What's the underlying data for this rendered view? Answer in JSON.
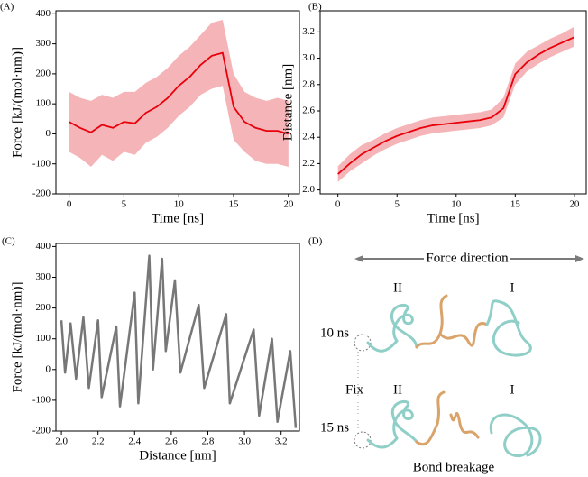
{
  "chart_data": [
    {
      "type": "line",
      "label": "(A)",
      "xlabel": "Time [ns]",
      "ylabel": "Force [kJ/(mol·nm)]",
      "x": [
        0,
        1,
        2,
        3,
        4,
        5,
        6,
        7,
        8,
        9,
        10,
        11,
        12,
        13,
        14,
        15,
        16,
        17,
        18,
        19,
        20
      ],
      "values": [
        40,
        20,
        5,
        30,
        20,
        40,
        35,
        70,
        90,
        120,
        160,
        190,
        230,
        260,
        270,
        90,
        40,
        20,
        10,
        10,
        0
      ],
      "lower": [
        -60,
        -80,
        -110,
        -70,
        -90,
        -60,
        -70,
        -30,
        -10,
        20,
        60,
        90,
        130,
        150,
        160,
        -20,
        -60,
        -90,
        -100,
        -100,
        -110
      ],
      "upper": [
        140,
        120,
        110,
        130,
        120,
        140,
        140,
        170,
        190,
        220,
        260,
        290,
        330,
        370,
        380,
        200,
        140,
        120,
        110,
        120,
        110
      ],
      "color": "#e8000b",
      "band_color": "#f5b5b8",
      "xlim": [
        -1.2,
        21
      ],
      "ylim": [
        -200,
        410
      ],
      "xticks": [
        0,
        5,
        10,
        15,
        20
      ],
      "yticks": [
        -200,
        -100,
        0,
        100,
        200,
        300,
        400
      ]
    },
    {
      "type": "line",
      "label": "(B)",
      "xlabel": "Time [ns]",
      "ylabel": "Distance [nm]",
      "x": [
        0,
        1,
        2,
        3,
        4,
        5,
        6,
        7,
        8,
        9,
        10,
        11,
        12,
        13,
        14,
        15,
        16,
        17,
        18,
        19,
        20
      ],
      "values": [
        2.12,
        2.2,
        2.27,
        2.32,
        2.37,
        2.41,
        2.44,
        2.47,
        2.49,
        2.5,
        2.51,
        2.52,
        2.53,
        2.55,
        2.62,
        2.88,
        2.97,
        3.03,
        3.08,
        3.12,
        3.16
      ],
      "lower": [
        2.06,
        2.14,
        2.2,
        2.26,
        2.31,
        2.35,
        2.38,
        2.41,
        2.43,
        2.44,
        2.45,
        2.46,
        2.47,
        2.49,
        2.55,
        2.8,
        2.9,
        2.96,
        3.01,
        3.05,
        3.09
      ],
      "upper": [
        2.18,
        2.27,
        2.34,
        2.38,
        2.43,
        2.47,
        2.5,
        2.53,
        2.55,
        2.56,
        2.57,
        2.58,
        2.59,
        2.61,
        2.7,
        2.96,
        3.05,
        3.1,
        3.15,
        3.19,
        3.24
      ],
      "color": "#e8000b",
      "band_color": "#f5b5b8",
      "xlim": [
        -1.5,
        21
      ],
      "ylim": [
        1.97,
        3.36
      ],
      "xticks": [
        0,
        5,
        10,
        15,
        20
      ],
      "yticks": [
        {
          "value": 2,
          "label": "2.0"
        },
        2.2,
        2.4,
        2.6,
        2.8,
        {
          "value": 3,
          "label": "3.0"
        },
        3.2
      ]
    },
    {
      "type": "line",
      "label": "(C)",
      "xlabel": "Distance [nm]",
      "ylabel": "Force [kJ/(mol·nm)]",
      "x": [
        2.0,
        2.02,
        2.05,
        2.08,
        2.12,
        2.15,
        2.2,
        2.22,
        2.3,
        2.32,
        2.4,
        2.42,
        2.48,
        2.5,
        2.55,
        2.57,
        2.62,
        2.65,
        2.75,
        2.78,
        2.9,
        2.92,
        3.05,
        3.08,
        3.15,
        3.18,
        3.25,
        3.28
      ],
      "values": [
        160,
        -10,
        150,
        -30,
        170,
        -60,
        160,
        -90,
        140,
        -120,
        250,
        -110,
        370,
        0,
        360,
        60,
        290,
        -10,
        210,
        -60,
        180,
        -110,
        130,
        -150,
        100,
        -170,
        60,
        -190
      ],
      "color": "#777777",
      "xlim": [
        1.97,
        3.3
      ],
      "ylim": [
        -200,
        410
      ],
      "xticks": [
        {
          "value": 2,
          "label": "2.0"
        },
        2.2,
        2.4,
        2.6,
        2.8,
        {
          "value": 3,
          "label": "3.0"
        },
        3.2
      ],
      "yticks": [
        -200,
        -100,
        0,
        100,
        200,
        300,
        400
      ]
    }
  ],
  "diagram": {
    "label": "(D)",
    "title": "Force direction",
    "top_left": "II",
    "top_right": "I",
    "top_time": "10 ns",
    "fix": "Fix",
    "bottom_left": "II",
    "bottom_right": "I",
    "bottom_time": "15 ns",
    "caption": "Bond breakage"
  }
}
